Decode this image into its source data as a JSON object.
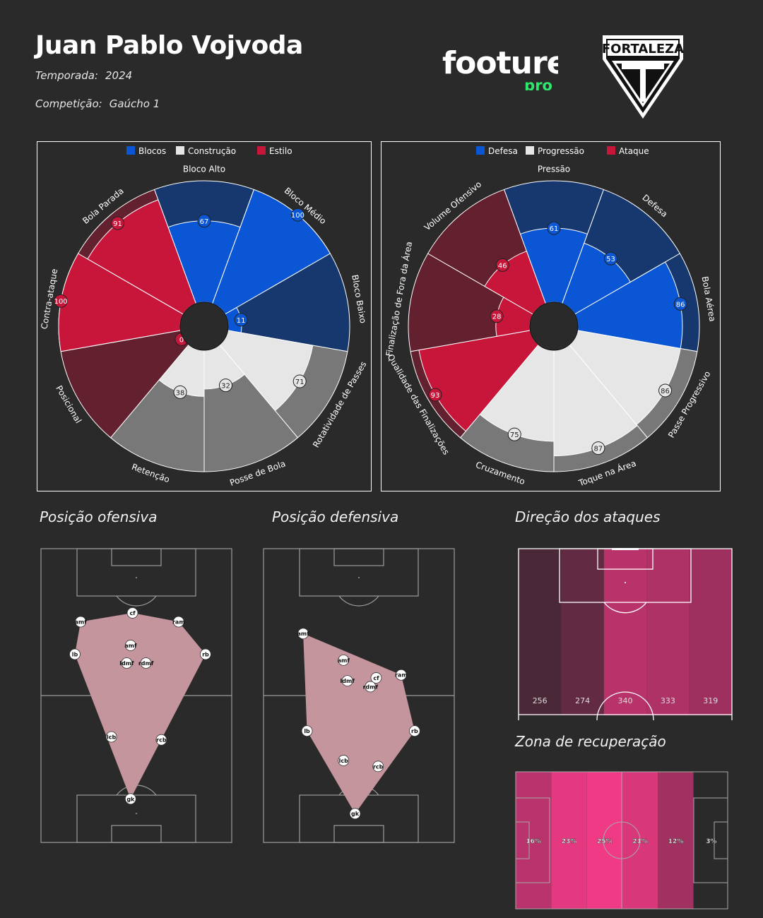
{
  "header": {
    "player": "Juan Pablo Vojvoda",
    "season_label": "Temporada:",
    "season_value": "2024",
    "competition_label": "Competição:",
    "competition_value": "Gaúcho 1",
    "brand_word": "footure",
    "brand_sub": "pro",
    "club_name": "FORTALEZA"
  },
  "colors": {
    "background": "#2a2a2a",
    "brand_green": "#2ee86d",
    "blue": "#0a56d4",
    "blue_dark": "#17386e",
    "light": "#e6e6e6",
    "grey": "#787878",
    "red": "#c8153a",
    "red_dark": "#63202e",
    "pitch_line": "#9c9c9c",
    "shape_fill": "#c4959d"
  },
  "sections": {
    "offensive": "Posição ofensiva",
    "defensive": "Posição defensiva",
    "attack_direction": "Direção dos ataques",
    "recovery_zone": "Zona de recuperação"
  },
  "chart_data": [
    {
      "type": "polar-bar",
      "id": "style",
      "ylim": [
        0,
        100
      ],
      "legend": [
        {
          "label": "Blocos",
          "color": "#0a56d4"
        },
        {
          "label": "Construção",
          "color": "#e6e6e6"
        },
        {
          "label": "Estilo",
          "color": "#c8153a"
        }
      ],
      "categories": [
        "Bloco Alto",
        "Bloco Médio",
        "Bloco Baixo",
        "Rotatividade de Passes",
        "Posse de Bola",
        "Retenção",
        "Posicional",
        "Contra-ataque",
        "Bola Parada"
      ],
      "groups": [
        "Blocos",
        "Blocos",
        "Blocos",
        "Construção",
        "Construção",
        "Construção",
        "Estilo",
        "Estilo",
        "Estilo"
      ],
      "values": [
        67,
        100,
        11,
        71,
        32,
        38,
        0,
        100,
        91
      ]
    },
    {
      "type": "polar-bar",
      "id": "game",
      "ylim": [
        0,
        100
      ],
      "legend": [
        {
          "label": "Defesa",
          "color": "#0a56d4"
        },
        {
          "label": "Progressão",
          "color": "#e6e6e6"
        },
        {
          "label": "Ataque",
          "color": "#c8153a"
        }
      ],
      "categories": [
        "Pressão",
        "Defesa",
        "Bola Aérea",
        "Passe Progressivo",
        "Toque na Área",
        "Cruzamento",
        "Qualidade das Finalizações",
        "Finalização de Fora da Área",
        "Volume Ofensivo"
      ],
      "groups": [
        "Defesa",
        "Defesa",
        "Defesa",
        "Progressão",
        "Progressão",
        "Progressão",
        "Ataque",
        "Ataque",
        "Ataque"
      ],
      "values": [
        61,
        53,
        86,
        86,
        87,
        75,
        93,
        28,
        46
      ]
    },
    {
      "type": "scatter",
      "id": "offensive-position",
      "x_range": [
        0,
        100
      ],
      "y_range": [
        0,
        100
      ],
      "points": [
        {
          "label": "cf",
          "x": 48,
          "y": 78
        },
        {
          "label": "amf",
          "x": 21,
          "y": 75
        },
        {
          "label": "ram",
          "x": 72,
          "y": 75
        },
        {
          "label": "amf",
          "x": 47,
          "y": 67
        },
        {
          "label": "lb",
          "x": 18,
          "y": 64
        },
        {
          "label": "rb",
          "x": 86,
          "y": 64
        },
        {
          "label": "ldmf",
          "x": 45,
          "y": 61
        },
        {
          "label": "rdmf",
          "x": 55,
          "y": 61
        },
        {
          "label": "lcb",
          "x": 37,
          "y": 36
        },
        {
          "label": "rcb",
          "x": 63,
          "y": 35
        },
        {
          "label": "gk",
          "x": 47,
          "y": 15
        }
      ],
      "hull": [
        "amf",
        "cf",
        "ram",
        "rb",
        "gk",
        "lb"
      ]
    },
    {
      "type": "scatter",
      "id": "defensive-position",
      "x_range": [
        0,
        100
      ],
      "y_range": [
        0,
        100
      ],
      "points": [
        {
          "label": "amf",
          "x": 21,
          "y": 71
        },
        {
          "label": "amf",
          "x": 42,
          "y": 62
        },
        {
          "label": "ram",
          "x": 72,
          "y": 57
        },
        {
          "label": "cf",
          "x": 59,
          "y": 56
        },
        {
          "label": "ldmf",
          "x": 44,
          "y": 55
        },
        {
          "label": "rdmf",
          "x": 56,
          "y": 53
        },
        {
          "label": "lb",
          "x": 23,
          "y": 38
        },
        {
          "label": "rb",
          "x": 79,
          "y": 38
        },
        {
          "label": "lcb",
          "x": 42,
          "y": 28
        },
        {
          "label": "rcb",
          "x": 60,
          "y": 26
        },
        {
          "label": "gk",
          "x": 48,
          "y": 10
        }
      ],
      "hull": [
        "amf",
        "ram",
        "rb",
        "gk",
        "lb"
      ]
    },
    {
      "type": "heatmap",
      "id": "attack-direction",
      "categories": [
        "lane-1",
        "lane-2",
        "lane-3",
        "lane-4",
        "lane-5"
      ],
      "values": [
        256,
        274,
        340,
        333,
        319
      ]
    },
    {
      "type": "heatmap",
      "id": "recovery-zone",
      "categories": [
        "zone-1",
        "zone-2",
        "zone-3",
        "zone-4",
        "zone-5",
        "zone-6"
      ],
      "values": [
        16,
        23,
        25,
        21,
        12,
        3
      ],
      "labels": [
        "16%",
        "23%",
        "25%",
        "21%",
        "12%",
        "3%"
      ]
    }
  ]
}
